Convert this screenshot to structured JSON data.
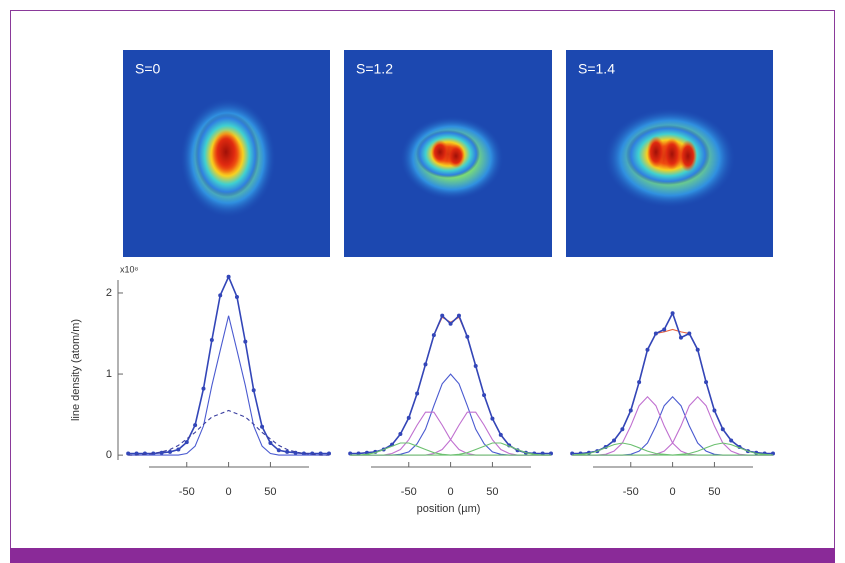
{
  "panels": [
    {
      "label": "S=0"
    },
    {
      "label": "S=1.2"
    },
    {
      "label": "S=1.4"
    }
  ],
  "chart_data": [
    {
      "type": "line",
      "ylabel": "line density (atom/m)",
      "yscale_label": "x10⁸",
      "x": [
        -120,
        -110,
        -100,
        -90,
        -80,
        -70,
        -60,
        -50,
        -40,
        -30,
        -20,
        -10,
        0,
        10,
        20,
        30,
        40,
        50,
        60,
        70,
        80,
        90,
        100,
        110,
        120
      ],
      "xlim": [
        -125,
        120
      ],
      "xticks": [
        -50,
        0,
        50
      ],
      "ylim": [
        -0.06,
        2.16
      ],
      "yticks": [
        0,
        1,
        2
      ],
      "series": [
        {
          "color": "#3346b8",
          "markers": true,
          "values": [
            0.02,
            0.02,
            0.02,
            0.02,
            0.03,
            0.04,
            0.07,
            0.16,
            0.37,
            0.82,
            1.42,
            1.97,
            2.2,
            1.95,
            1.4,
            0.8,
            0.35,
            0.15,
            0.06,
            0.04,
            0.03,
            0.02,
            0.02,
            0.02,
            0.02
          ]
        },
        {
          "color": "#4a5ad0",
          "values": [
            0,
            0,
            0,
            0,
            0,
            0,
            0,
            0.02,
            0.11,
            0.36,
            0.86,
            1.29,
            1.72,
            1.29,
            0.86,
            0.36,
            0.11,
            0.02,
            0,
            0,
            0,
            0,
            0,
            0,
            0
          ]
        },
        {
          "color": "#3a3ea0",
          "dash": true,
          "values": [
            0,
            0,
            0.01,
            0.02,
            0.04,
            0.07,
            0.12,
            0.2,
            0.28,
            0.38,
            0.47,
            0.51,
            0.55,
            0.51,
            0.47,
            0.38,
            0.28,
            0.2,
            0.12,
            0.07,
            0.04,
            0.02,
            0.01,
            0,
            0
          ]
        }
      ]
    },
    {
      "type": "line",
      "xlabel": "position (µm)",
      "x": [
        -120,
        -110,
        -100,
        -90,
        -80,
        -70,
        -60,
        -50,
        -40,
        -30,
        -20,
        -10,
        0,
        10,
        20,
        30,
        40,
        50,
        60,
        70,
        80,
        90,
        100,
        110,
        120
      ],
      "xlim": [
        -125,
        120
      ],
      "xticks": [
        -50,
        0,
        50
      ],
      "ylim": [
        -0.06,
        2.16
      ],
      "series": [
        {
          "color": "#e8603a",
          "values": [
            0.02,
            0.02,
            0.03,
            0.04,
            0.07,
            0.13,
            0.26,
            0.46,
            0.76,
            1.12,
            1.48,
            1.7,
            1.64,
            1.7,
            1.46,
            1.1,
            0.74,
            0.45,
            0.25,
            0.12,
            0.06,
            0.03,
            0.02,
            0.02,
            0.02
          ]
        },
        {
          "color": "#3346b8",
          "markers": true,
          "values": [
            0.02,
            0.02,
            0.03,
            0.04,
            0.07,
            0.13,
            0.26,
            0.46,
            0.76,
            1.12,
            1.48,
            1.72,
            1.62,
            1.72,
            1.46,
            1.1,
            0.74,
            0.45,
            0.25,
            0.12,
            0.06,
            0.03,
            0.02,
            0.02,
            0.02
          ]
        },
        {
          "color": "#4a5ad0",
          "values": [
            0,
            0,
            0,
            0,
            0,
            0,
            0.01,
            0.04,
            0.14,
            0.32,
            0.61,
            0.88,
            1.0,
            0.88,
            0.61,
            0.32,
            0.14,
            0.04,
            0.01,
            0,
            0,
            0,
            0,
            0,
            0
          ]
        },
        {
          "color": "#c070d0",
          "values": [
            0,
            0,
            0,
            0,
            0,
            0.02,
            0.07,
            0.19,
            0.37,
            0.53,
            0.53,
            0.37,
            0.19,
            0.07,
            0.02,
            0,
            0,
            0,
            0,
            0,
            0,
            0,
            0,
            0,
            0
          ]
        },
        {
          "color": "#c070d0",
          "values": [
            0,
            0,
            0,
            0,
            0,
            0,
            0,
            0,
            0,
            0,
            0.02,
            0.07,
            0.19,
            0.37,
            0.53,
            0.53,
            0.37,
            0.19,
            0.07,
            0.02,
            0,
            0,
            0,
            0,
            0
          ]
        },
        {
          "color": "#6cc070",
          "values": [
            0,
            0,
            0.01,
            0.03,
            0.07,
            0.11,
            0.15,
            0.15,
            0.11,
            0.07,
            0.03,
            0.01,
            0,
            0,
            0,
            0,
            0,
            0,
            0,
            0,
            0,
            0,
            0,
            0,
            0
          ]
        },
        {
          "color": "#6cc070",
          "values": [
            0,
            0,
            0,
            0,
            0,
            0,
            0,
            0,
            0,
            0,
            0,
            0,
            0,
            0.01,
            0.03,
            0.07,
            0.11,
            0.15,
            0.15,
            0.11,
            0.07,
            0.03,
            0.01,
            0,
            0
          ]
        }
      ]
    },
    {
      "type": "line",
      "x": [
        -120,
        -110,
        -100,
        -90,
        -80,
        -70,
        -60,
        -50,
        -40,
        -30,
        -20,
        -10,
        0,
        10,
        20,
        30,
        40,
        50,
        60,
        70,
        80,
        90,
        100,
        110,
        120
      ],
      "xlim": [
        -125,
        120
      ],
      "xticks": [
        -50,
        0,
        50
      ],
      "ylim": [
        -0.06,
        2.16
      ],
      "series": [
        {
          "color": "#e8603a",
          "values": [
            0.02,
            0.02,
            0.03,
            0.05,
            0.1,
            0.18,
            0.32,
            0.55,
            0.9,
            1.3,
            1.5,
            1.52,
            1.55,
            1.52,
            1.5,
            1.3,
            0.9,
            0.55,
            0.32,
            0.18,
            0.1,
            0.05,
            0.03,
            0.02,
            0.02
          ]
        },
        {
          "color": "#3346b8",
          "markers": true,
          "values": [
            0.02,
            0.02,
            0.03,
            0.05,
            0.1,
            0.18,
            0.32,
            0.55,
            0.9,
            1.3,
            1.5,
            1.55,
            1.75,
            1.45,
            1.5,
            1.3,
            0.9,
            0.55,
            0.32,
            0.18,
            0.1,
            0.05,
            0.03,
            0.02,
            0.02
          ]
        },
        {
          "color": "#4a5ad0",
          "values": [
            0,
            0,
            0,
            0,
            0,
            0,
            0,
            0.01,
            0.05,
            0.15,
            0.36,
            0.61,
            0.72,
            0.61,
            0.36,
            0.15,
            0.05,
            0.01,
            0,
            0,
            0,
            0,
            0,
            0,
            0
          ]
        },
        {
          "color": "#c070d0",
          "values": [
            0,
            0,
            0,
            0,
            0.01,
            0.05,
            0.15,
            0.36,
            0.61,
            0.72,
            0.61,
            0.36,
            0.15,
            0.05,
            0.01,
            0,
            0,
            0,
            0,
            0,
            0,
            0,
            0,
            0,
            0
          ]
        },
        {
          "color": "#c070d0",
          "values": [
            0,
            0,
            0,
            0,
            0,
            0,
            0,
            0,
            0,
            0,
            0.01,
            0.05,
            0.15,
            0.36,
            0.61,
            0.72,
            0.61,
            0.36,
            0.15,
            0.05,
            0.01,
            0,
            0,
            0,
            0
          ]
        },
        {
          "color": "#6cc070",
          "values": [
            0,
            0.01,
            0.02,
            0.05,
            0.09,
            0.13,
            0.15,
            0.13,
            0.09,
            0.05,
            0.02,
            0.01,
            0,
            0,
            0,
            0,
            0,
            0,
            0,
            0,
            0,
            0,
            0,
            0,
            0
          ]
        },
        {
          "color": "#6cc070",
          "values": [
            0,
            0,
            0,
            0,
            0,
            0,
            0,
            0,
            0,
            0,
            0,
            0,
            0,
            0.01,
            0.02,
            0.05,
            0.09,
            0.13,
            0.15,
            0.13,
            0.09,
            0.05,
            0.02,
            0.01,
            0
          ]
        }
      ]
    }
  ]
}
